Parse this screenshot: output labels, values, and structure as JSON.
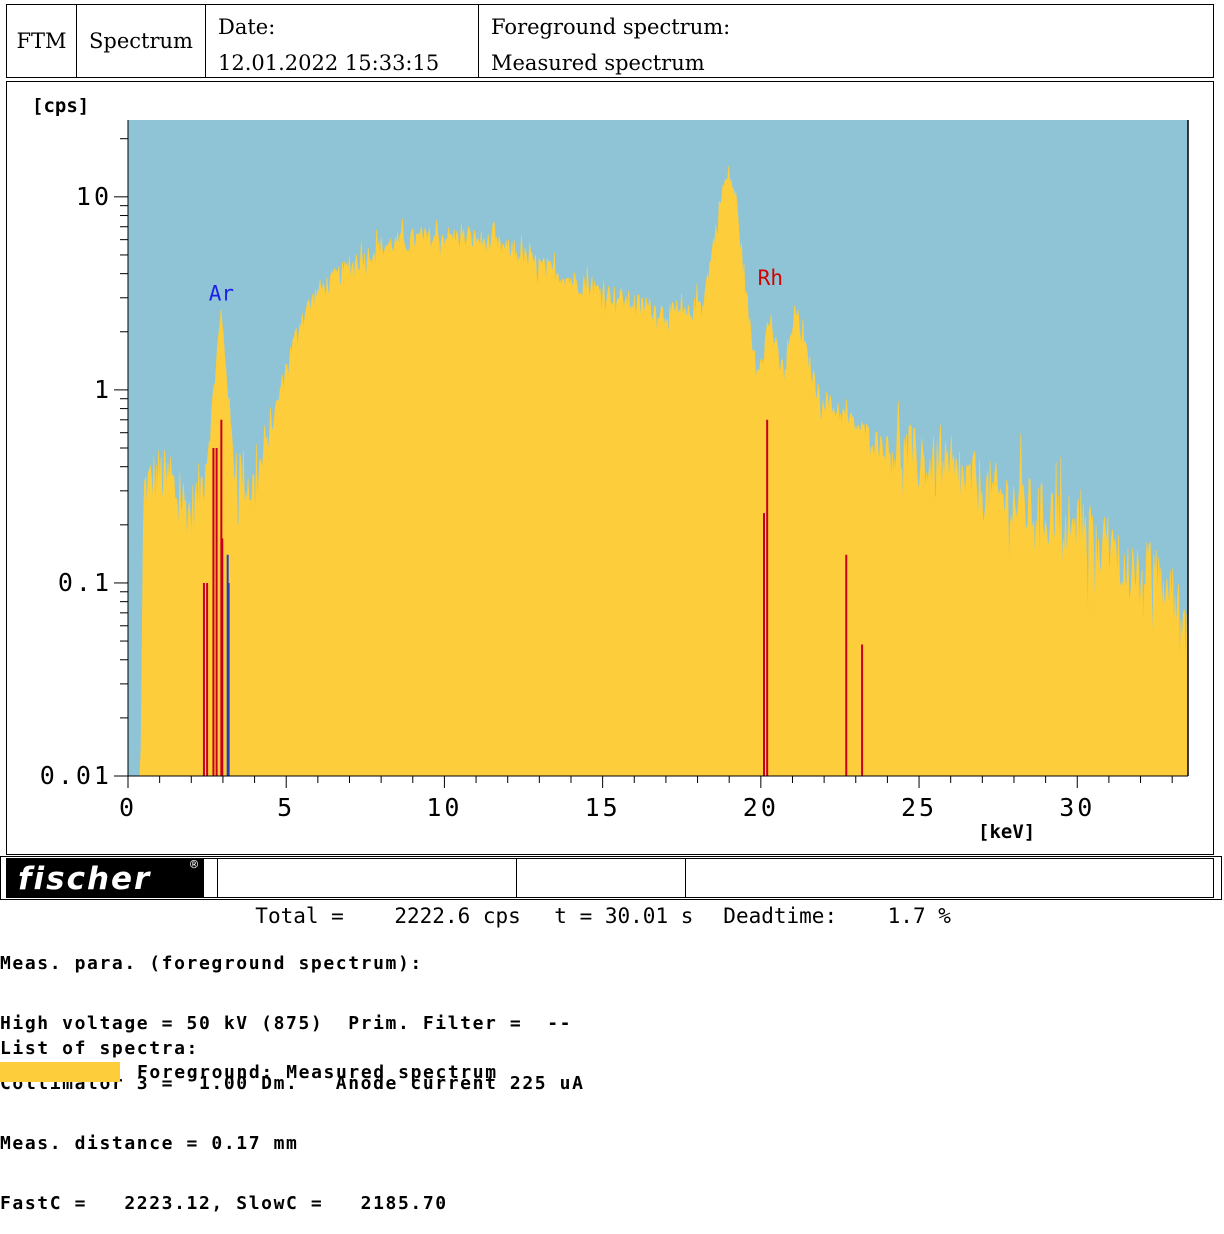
{
  "header": {
    "ftm": "FTM",
    "mode": "Spectrum",
    "date_label": "Date:",
    "date_value": "12.01.2022 15:33:15",
    "fg_label": "Foreground spectrum:",
    "fg_value": "Measured spectrum"
  },
  "footer_bar": {
    "logo_text": "fischer",
    "total": "Total =    2222.6 cps",
    "time": "t = 30.01 s",
    "deadtime": "Deadtime:    1.7 %"
  },
  "params": {
    "title": "Meas. para. (foreground spectrum):",
    "line1": "High voltage = 50 kV (875)  Prim. Filter =  --",
    "line2": "Collimator 3 =  1.00 Dm.   Anode current 225 uA",
    "line3": "Meas. distance = 0.17 mm",
    "line4": "FastC =   2223.12, SlowC =   2185.70"
  },
  "legend": {
    "title": "List of spectra:",
    "entry": "Foreground: Measured spectrum"
  },
  "colors": {
    "background": "#8fc4d6",
    "spectrum": "#fdcd3b",
    "line_red": "#c8001e",
    "line_blue": "#1f3cc4",
    "label_ar": "#1e1ee6",
    "label_rh": "#d20000"
  },
  "chart_data": {
    "type": "area",
    "title": "",
    "ylabel": "[cps]",
    "xlabel": "[keV]",
    "x_scale": "linear",
    "y_scale": "log",
    "xlim": [
      0,
      33.5
    ],
    "ylim": [
      0.01,
      25
    ],
    "xticks": [
      0,
      5,
      10,
      15,
      20,
      25,
      30
    ],
    "yticks": [
      {
        "value": 0.01,
        "label": "0.01"
      },
      {
        "value": 0.1,
        "label": "0.1"
      },
      {
        "value": 1,
        "label": "1"
      },
      {
        "value": 10,
        "label": "10"
      }
    ],
    "series": [
      {
        "name": "Foreground: Measured spectrum",
        "points": [
          [
            0.0,
            0.01
          ],
          [
            0.4,
            0.01
          ],
          [
            0.5,
            0.3
          ],
          [
            1.0,
            0.35
          ],
          [
            1.5,
            0.3
          ],
          [
            2.0,
            0.22
          ],
          [
            2.3,
            0.3
          ],
          [
            2.6,
            0.6
          ],
          [
            2.8,
            1.5
          ],
          [
            2.95,
            2.4
          ],
          [
            3.1,
            1.3
          ],
          [
            3.3,
            0.5
          ],
          [
            3.6,
            0.35
          ],
          [
            4.0,
            0.3
          ],
          [
            4.3,
            0.45
          ],
          [
            4.6,
            0.7
          ],
          [
            5.0,
            1.3
          ],
          [
            5.5,
            2.4
          ],
          [
            6.0,
            3.2
          ],
          [
            7.0,
            4.3
          ],
          [
            8.0,
            5.5
          ],
          [
            9.0,
            6.0
          ],
          [
            10.0,
            6.2
          ],
          [
            11.0,
            6.0
          ],
          [
            12.0,
            5.3
          ],
          [
            13.0,
            4.4
          ],
          [
            14.0,
            3.7
          ],
          [
            15.0,
            3.2
          ],
          [
            16.0,
            2.8
          ],
          [
            17.0,
            2.5
          ],
          [
            17.7,
            2.4
          ],
          [
            18.2,
            3.0
          ],
          [
            18.5,
            5.5
          ],
          [
            18.8,
            11.0
          ],
          [
            19.0,
            13.0
          ],
          [
            19.2,
            10.0
          ],
          [
            19.4,
            5.0
          ],
          [
            19.7,
            1.8
          ],
          [
            19.9,
            1.3
          ],
          [
            20.1,
            1.7
          ],
          [
            20.3,
            2.3
          ],
          [
            20.6,
            1.3
          ],
          [
            20.8,
            1.3
          ],
          [
            21.1,
            2.6
          ],
          [
            21.4,
            1.6
          ],
          [
            21.8,
            0.95
          ],
          [
            22.5,
            0.75
          ],
          [
            23.0,
            0.65
          ],
          [
            24.0,
            0.5
          ],
          [
            25.0,
            0.42
          ],
          [
            26.0,
            0.35
          ],
          [
            27.0,
            0.3
          ],
          [
            28.0,
            0.26
          ],
          [
            29.0,
            0.22
          ],
          [
            30.0,
            0.19
          ],
          [
            31.0,
            0.15
          ],
          [
            32.0,
            0.12
          ],
          [
            33.0,
            0.09
          ],
          [
            33.4,
            0.07
          ]
        ]
      }
    ],
    "element_lines": [
      {
        "element": "Ar",
        "color": "red",
        "lines": [
          [
            2.4,
            0.1
          ],
          [
            2.5,
            0.1
          ],
          [
            2.7,
            0.5
          ],
          [
            2.8,
            0.5
          ],
          [
            2.95,
            0.7
          ],
          [
            2.98,
            0.17
          ]
        ]
      },
      {
        "element": "Ar",
        "color": "blue",
        "lines": [
          [
            3.15,
            0.14
          ],
          [
            3.18,
            0.1
          ]
        ]
      },
      {
        "element": "Rh",
        "color": "red",
        "lines": [
          [
            20.1,
            0.23
          ],
          [
            20.2,
            0.7
          ],
          [
            22.7,
            0.14
          ],
          [
            23.2,
            0.048
          ]
        ]
      }
    ],
    "annotations": [
      {
        "text": "Ar",
        "x": 2.95,
        "y": 2.9,
        "color": "blue"
      },
      {
        "text": "Rh",
        "x": 20.3,
        "y": 3.5,
        "color": "red"
      }
    ],
    "grid": false,
    "legend_position": "below"
  }
}
